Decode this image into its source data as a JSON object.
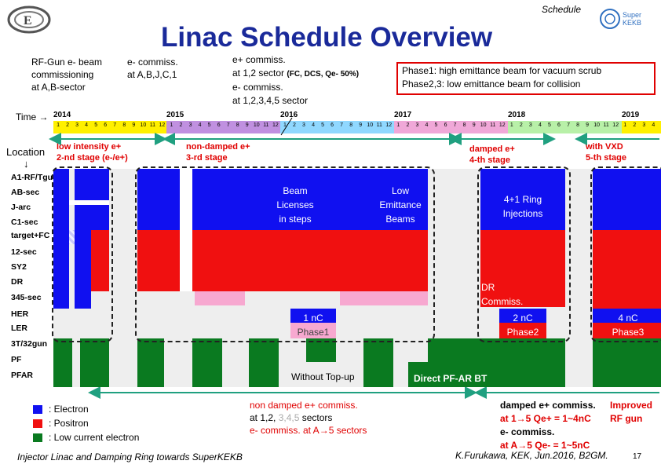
{
  "header": {
    "corner_label": "Schedule",
    "title": "Linac Schedule Overview",
    "logo_text": "Super KEKB"
  },
  "notes": {
    "rf_gun": [
      "RF-Gun e- beam",
      "commissioning",
      "at A,B-sector"
    ],
    "e_minus": [
      "e- commiss.",
      "at A,B,J,C,1"
    ],
    "e_plus_1": "e+ commiss.",
    "e_plus_2a": "at 1,2 sector",
    "e_plus_2b": "(FC, DCS, Qe- 50%)",
    "e_plus_3": "e- commiss.",
    "e_plus_4": "at 1,2,3,4,5 sector",
    "phase_box": [
      "Phase1: high emittance beam for vacuum scrub",
      "Phase2,3: low emittance beam for collision"
    ]
  },
  "timeline": {
    "time_label": "Time →",
    "location_label": "Location",
    "location_arrow": "↓",
    "years": [
      "2014",
      "2015",
      "2016",
      "2017",
      "2018",
      "2019"
    ],
    "months": [
      "1",
      "2",
      "3",
      "4",
      "5",
      "6",
      "7",
      "8",
      "9",
      "10",
      "11",
      "12"
    ]
  },
  "stages": {
    "s2a": "low intensity e+",
    "s2b": "2-nd stage (e-/e+)",
    "s3a": "non-damped e+",
    "s3b": "3-rd stage",
    "s4a": "damped e+",
    "s4b": "4-th stage",
    "s5a": "with VXD",
    "s5b": "5-th stage"
  },
  "rows": [
    "A1-RF/Tgun",
    "AB-sec",
    "J-arc",
    "C1-sec",
    "target+FC",
    "12-sec",
    "SY2",
    "DR",
    "345-sec",
    "HER",
    "LER",
    "3T/32gun",
    "PF",
    "PFAR"
  ],
  "blocks": {
    "beam_licenses": [
      "Beam",
      "Licenses",
      "in steps"
    ],
    "low_emittance": [
      "Low",
      "Emittance",
      "Beams"
    ],
    "ring_injections": [
      "4+1 Ring",
      "Injections"
    ],
    "dr_commiss": [
      "DR",
      "Commiss."
    ],
    "phase1": [
      "1 nC",
      "Phase1"
    ],
    "phase2": [
      "2 nC",
      "Phase2"
    ],
    "phase3": [
      "4 nC",
      "Phase3"
    ],
    "without_topup": "Without Top-up",
    "direct_pfar": "Direct PF-AR BT"
  },
  "legend": {
    "electron": ": Electron",
    "positron": ": Positron",
    "low_current": ": Low current electron",
    "colors": {
      "electron": "#1010f0",
      "positron": "#f01010",
      "low_current": "#0a7a20"
    }
  },
  "bottom_notes": {
    "nd_1": "non damped e+ commiss.",
    "nd_2a": "at 1,2,",
    "nd_2b": "3,4,5",
    "nd_2c": "sectors",
    "nd_3": "e- commiss. at A→5 sectors",
    "d_1": "damped e+ commiss.",
    "d_2": "at 1→5 Qe+ = 1~4nC",
    "d_3": "e- commiss.",
    "d_4": "at A→5 Qe- = 1~5nC",
    "rf_1": "Improved",
    "rf_2": "RF gun"
  },
  "footer": {
    "left": "Injector Linac and Damping Ring towards SuperKEKB",
    "right": "K.Furukawa, KEK, Jun.2016, B2GM.",
    "page": "17"
  }
}
